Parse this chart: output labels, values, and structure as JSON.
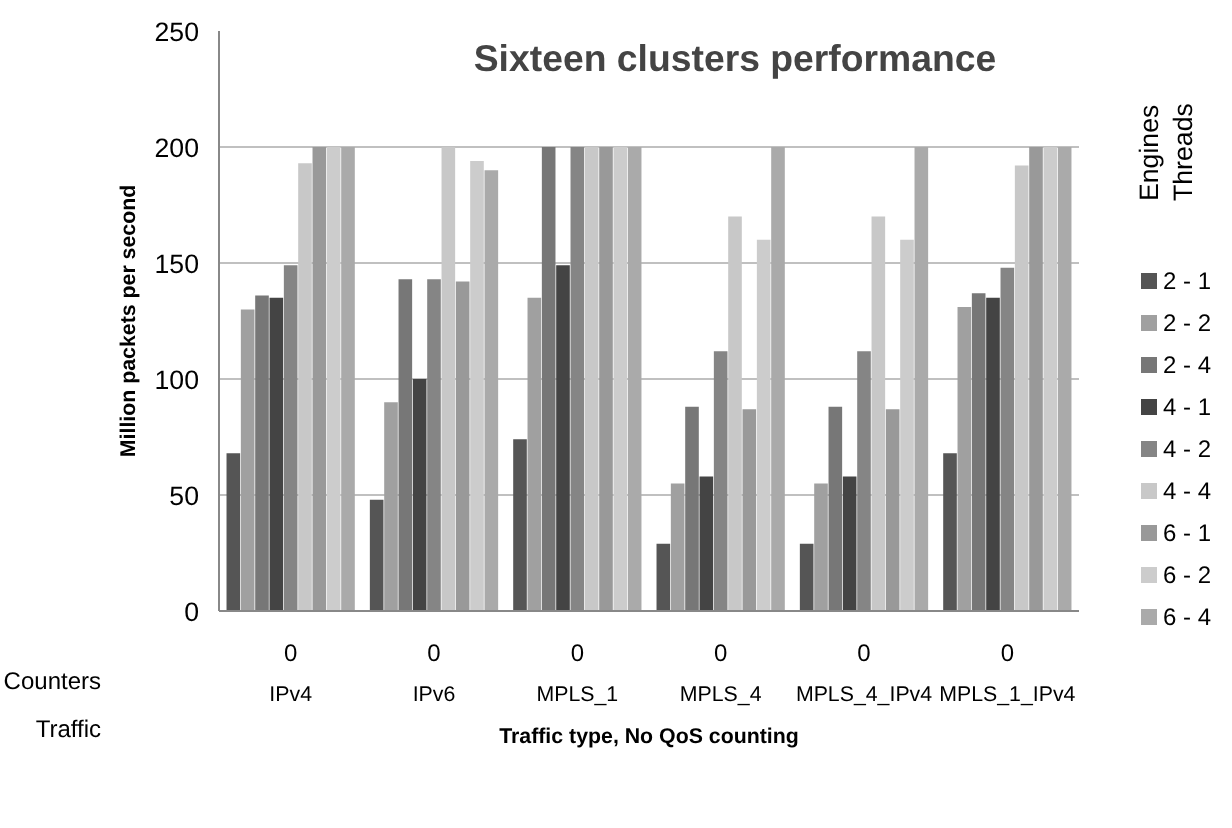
{
  "chart_data": {
    "type": "bar",
    "title": "Sixteen clusters performance",
    "xlabel": "Traffic type, No QoS counting",
    "ylabel": "Million packets per second",
    "legend_title": "Engines\nThreads",
    "categories": [
      "IPv4",
      "IPv6",
      "MPLS_1",
      "MPLS_4",
      "MPLS_4_IPv4",
      "MPLS_1_IPv4"
    ],
    "series": [
      {
        "name": "2 - 1",
        "color": "#555555",
        "values": [
          68,
          48,
          74,
          29,
          29,
          68
        ]
      },
      {
        "name": "2 - 2",
        "color": "#a0a0a0",
        "values": [
          130,
          90,
          135,
          55,
          55,
          131
        ]
      },
      {
        "name": "2 - 4",
        "color": "#777777",
        "values": [
          136,
          143,
          200,
          88,
          88,
          137
        ]
      },
      {
        "name": "4 - 1",
        "color": "#444444",
        "values": [
          135,
          100,
          149,
          58,
          58,
          135
        ]
      },
      {
        "name": "4 - 2",
        "color": "#858585",
        "values": [
          149,
          143,
          200,
          112,
          112,
          148
        ]
      },
      {
        "name": "4 - 4",
        "color": "#c8c8c8",
        "values": [
          193,
          200,
          200,
          170,
          170,
          192
        ]
      },
      {
        "name": "6 - 1",
        "color": "#999999",
        "values": [
          200,
          142,
          200,
          87,
          87,
          200
        ]
      },
      {
        "name": "6 - 2",
        "color": "#cccccc",
        "values": [
          200,
          194,
          200,
          160,
          160,
          200
        ]
      },
      {
        "name": "6 - 4",
        "color": "#aaaaaa",
        "values": [
          200,
          190,
          200,
          200,
          200,
          200
        ]
      }
    ],
    "ylim": [
      0,
      250
    ],
    "yticks": [
      0,
      50,
      100,
      150,
      200,
      250
    ],
    "grid": "y",
    "legend": "right",
    "annotations": [
      "Counters",
      "Traffic",
      "0",
      "0",
      "0",
      "0",
      "0",
      "0"
    ]
  }
}
